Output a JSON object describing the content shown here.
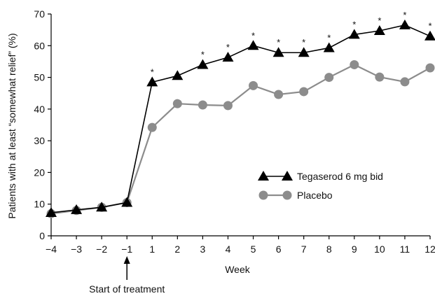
{
  "chart_data": {
    "type": "line",
    "xlabel": "Week",
    "ylabel": "Patients with at least “somewhat relief” (%)",
    "x_ticks": [
      "−4",
      "−3",
      "−2",
      "−1",
      "1",
      "2",
      "3",
      "4",
      "5",
      "6",
      "7",
      "8",
      "9",
      "10",
      "11",
      "12"
    ],
    "y_ticks": [
      0,
      10,
      20,
      30,
      40,
      50,
      60,
      70
    ],
    "ylim": [
      0,
      70
    ],
    "grid": false,
    "legend_position": "right-center",
    "annotation": "Start of treatment",
    "annotation_x": "−1",
    "significance_marker": "*",
    "series": [
      {
        "name": "Tegaserod 6 mg bid",
        "marker": "triangle",
        "color": "#000000",
        "x": [
          -4,
          -3,
          -2,
          -1,
          1,
          2,
          3,
          4,
          5,
          6,
          7,
          8,
          9,
          10,
          11,
          12
        ],
        "values": [
          7.3,
          8.2,
          9.0,
          10.5,
          48.5,
          50.5,
          54.0,
          56.3,
          60.0,
          57.8,
          57.8,
          59.3,
          63.5,
          64.7,
          66.5,
          63.0
        ],
        "significant": [
          false,
          false,
          false,
          false,
          true,
          false,
          true,
          true,
          true,
          true,
          true,
          true,
          true,
          true,
          true,
          true
        ]
      },
      {
        "name": "Placebo",
        "marker": "circle",
        "color": "#8c8c8c",
        "x": [
          -4,
          -3,
          -2,
          -1,
          1,
          2,
          3,
          4,
          5,
          6,
          7,
          8,
          9,
          10,
          11,
          12
        ],
        "values": [
          7.0,
          8.0,
          9.0,
          10.5,
          34.2,
          41.7,
          41.3,
          41.1,
          47.4,
          44.6,
          45.5,
          50.0,
          54.0,
          50.1,
          48.6,
          53.0
        ]
      }
    ]
  }
}
